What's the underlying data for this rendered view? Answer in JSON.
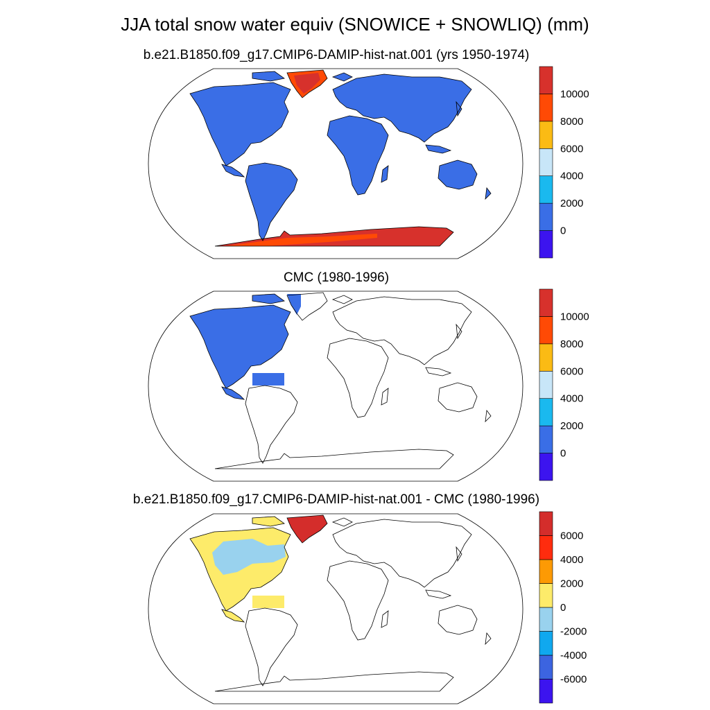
{
  "title": "JJA total snow water equiv (SNOWICE + SNOWLIQ) (mm)",
  "colors": {
    "sweep": [
      "#3c14ef",
      "#3a6ee6",
      "#1ab9ef",
      "#c8e6f8",
      "#fbbb14",
      "#ff4a05",
      "#d7312c"
    ],
    "diff": [
      "#3c14ef",
      "#3c64e0",
      "#10a8ef",
      "#99d2ee",
      "#fdeb6a",
      "#fd9a04",
      "#ff2c0e",
      "#d42d2b"
    ],
    "coast": "#000000"
  },
  "panels": [
    {
      "subtitle": "b.e21.B1850.f09_g17.CMIP6-DAMIP-hist-nat.001 (yrs 1950-1974)",
      "fill": "global",
      "colorbar": {
        "palette": "sweep",
        "labels": [
          "10000",
          "8000",
          "6000",
          "4000",
          "2000",
          "0"
        ]
      }
    },
    {
      "subtitle": "CMC (1980-1996)",
      "fill": "north-america",
      "colorbar": {
        "palette": "sweep",
        "labels": [
          "10000",
          "8000",
          "6000",
          "4000",
          "2000",
          "0"
        ]
      }
    },
    {
      "subtitle": "b.e21.B1850.f09_g17.CMIP6-DAMIP-hist-nat.001 - CMC (1980-1996)",
      "fill": "difference",
      "colorbar": {
        "palette": "diff",
        "labels": [
          "6000",
          "4000",
          "2000",
          "0",
          "-2000",
          "-4000",
          "-6000"
        ]
      }
    }
  ]
}
